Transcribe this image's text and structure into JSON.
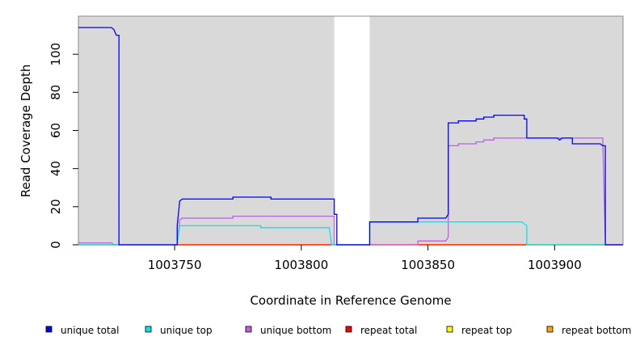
{
  "chart_data": {
    "type": "line",
    "title": "",
    "xlabel": "Coordinate in Reference Genome",
    "ylabel": "Read Coverage Depth",
    "xlim": [
      1003712,
      1003927
    ],
    "ylim": [
      0,
      120
    ],
    "x_ticks": [
      1003750,
      1003800,
      1003850,
      1003900
    ],
    "y_ticks": [
      0,
      20,
      40,
      60,
      80,
      100
    ],
    "grid": false,
    "panel_color": "#d9d9d9",
    "shaded_regions": [
      [
        1003712,
        1003813
      ],
      [
        1003827,
        1003927
      ]
    ],
    "legend_position": "bottom",
    "series": [
      {
        "name": "unique total",
        "color": "#0000ff",
        "points": [
          [
            1003712,
            114
          ],
          [
            1003725,
            114
          ],
          [
            1003726,
            113
          ],
          [
            1003727,
            110
          ],
          [
            1003728,
            110
          ],
          [
            1003728,
            0
          ],
          [
            1003751,
            0
          ],
          [
            1003751,
            10
          ],
          [
            1003752,
            23
          ],
          [
            1003753,
            24
          ],
          [
            1003773,
            24
          ],
          [
            1003773,
            25
          ],
          [
            1003788,
            25
          ],
          [
            1003788,
            24
          ],
          [
            1003813,
            24
          ],
          [
            1003813,
            16
          ],
          [
            1003814,
            16
          ],
          [
            1003814,
            0
          ],
          [
            1003827,
            0
          ],
          [
            1003827,
            12
          ],
          [
            1003846,
            12
          ],
          [
            1003846,
            14
          ],
          [
            1003857,
            14
          ],
          [
            1003858,
            16
          ],
          [
            1003858,
            64
          ],
          [
            1003862,
            64
          ],
          [
            1003862,
            65
          ],
          [
            1003869,
            65
          ],
          [
            1003869,
            66
          ],
          [
            1003872,
            66
          ],
          [
            1003872,
            67
          ],
          [
            1003876,
            67
          ],
          [
            1003876,
            68
          ],
          [
            1003888,
            68
          ],
          [
            1003888,
            66
          ],
          [
            1003889,
            66
          ],
          [
            1003889,
            56
          ],
          [
            1003901,
            56
          ],
          [
            1003902,
            55
          ],
          [
            1003903,
            56
          ],
          [
            1003907,
            56
          ],
          [
            1003907,
            53
          ],
          [
            1003918,
            53
          ],
          [
            1003919,
            52
          ],
          [
            1003920,
            52
          ],
          [
            1003920,
            0
          ],
          [
            1003927,
            0
          ]
        ]
      },
      {
        "name": "unique top",
        "color": "#00e5ee",
        "points": [
          [
            1003712,
            0
          ],
          [
            1003751,
            0
          ],
          [
            1003752,
            10
          ],
          [
            1003784,
            10
          ],
          [
            1003784,
            9
          ],
          [
            1003811,
            9
          ],
          [
            1003812,
            0
          ],
          [
            1003827,
            0
          ],
          [
            1003827,
            12
          ],
          [
            1003887,
            12
          ],
          [
            1003888,
            11
          ],
          [
            1003889,
            10
          ],
          [
            1003889,
            0
          ],
          [
            1003920,
            0
          ]
        ]
      },
      {
        "name": "unique bottom",
        "color": "#c05ce8",
        "points": [
          [
            1003712,
            1
          ],
          [
            1003725,
            1
          ],
          [
            1003726,
            0
          ],
          [
            1003751,
            0
          ],
          [
            1003752,
            13
          ],
          [
            1003753,
            14
          ],
          [
            1003773,
            14
          ],
          [
            1003773,
            15
          ],
          [
            1003813,
            15
          ],
          [
            1003813,
            0
          ],
          [
            1003846,
            0
          ],
          [
            1003846,
            2
          ],
          [
            1003857,
            2
          ],
          [
            1003858,
            4
          ],
          [
            1003858,
            52
          ],
          [
            1003862,
            52
          ],
          [
            1003862,
            53
          ],
          [
            1003869,
            53
          ],
          [
            1003869,
            54
          ],
          [
            1003872,
            54
          ],
          [
            1003872,
            55
          ],
          [
            1003876,
            55
          ],
          [
            1003876,
            56
          ],
          [
            1003919,
            56
          ],
          [
            1003920,
            0
          ],
          [
            1003927,
            0
          ]
        ]
      },
      {
        "name": "repeat total",
        "color": "#ff0000",
        "points": [
          [
            1003712,
            0
          ],
          [
            1003927,
            0
          ]
        ]
      },
      {
        "name": "repeat top",
        "color": "#ffff00",
        "points": [
          [
            1003712,
            0
          ],
          [
            1003927,
            0
          ]
        ]
      },
      {
        "name": "repeat bottom",
        "color": "#ffa500",
        "points": [
          [
            1003712,
            0
          ],
          [
            1003813,
            0
          ],
          [
            1003827,
            0
          ],
          [
            1003927,
            0
          ]
        ]
      }
    ]
  }
}
